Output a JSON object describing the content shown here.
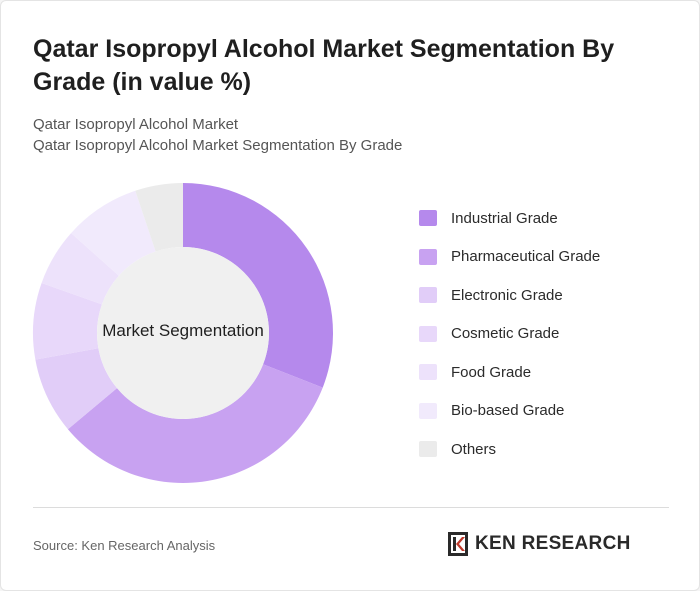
{
  "header": {
    "title": "Qatar Isopropyl Alcohol Market Segmentation By Grade (in value %)",
    "breadcrumb_1": "Qatar Isopropyl Alcohol Market",
    "breadcrumb_2": "Qatar Isopropyl Alcohol Market Segmentation By Grade"
  },
  "chart_data": {
    "type": "pie",
    "variant": "donut",
    "center_label": "Market Segmentation",
    "categories": [
      "Industrial Grade",
      "Pharmaceutical Grade",
      "Electronic Grade",
      "Cosmetic Grade",
      "Food Grade",
      "Bio-based Grade",
      "Others"
    ],
    "values": [
      30,
      32,
      8,
      8,
      6,
      8,
      5
    ],
    "colors": [
      "#b589ec",
      "#c8a2f1",
      "#e1cdf8",
      "#e8d8fa",
      "#ede2fb",
      "#f1eafc",
      "#ebebeb"
    ],
    "legend_position": "right",
    "hole_color": "#f0f0f0"
  },
  "footer": {
    "source": "Source: Ken Research Analysis",
    "logo_text": "KEN RESEARCH"
  }
}
